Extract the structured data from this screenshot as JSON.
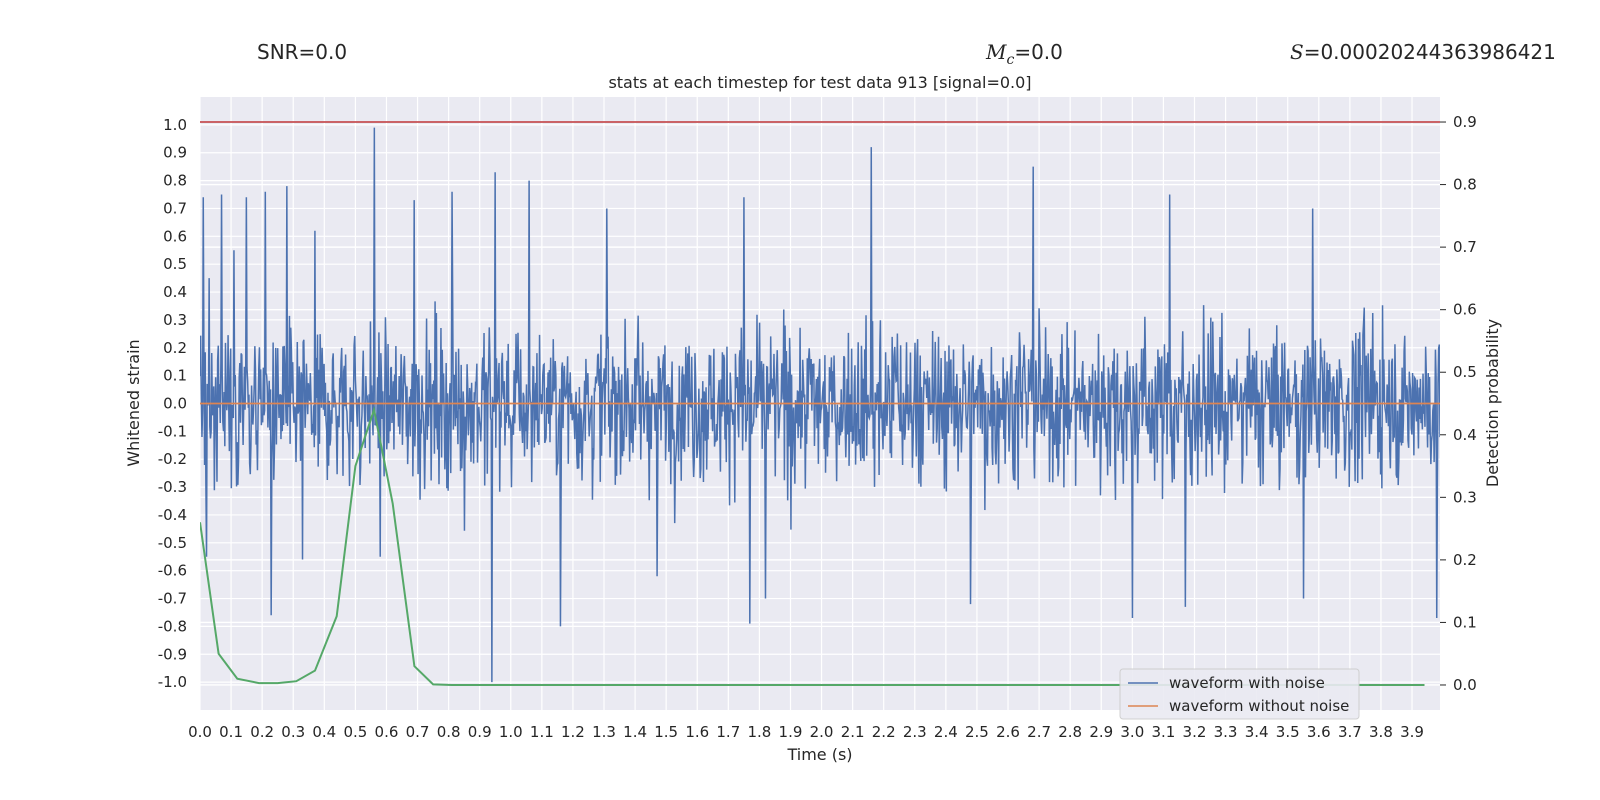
{
  "header": {
    "snr_label": "SNR=0.0",
    "mc_symbol": "M",
    "mc_sub": "c",
    "mc_value": "=0.0",
    "s_symbol": "S",
    "s_value": "=0.00020244363986421"
  },
  "chart_data": {
    "type": "line",
    "title": "stats at each timestep for test data 913 [signal=0.0]",
    "xlabel": "Time (s)",
    "ylabel": "Whitened strain",
    "ylabel_right": "Detection probability",
    "xlim": [
      0.0,
      3.99
    ],
    "ylim": [
      -1.1,
      1.1
    ],
    "ylim_right": [
      -0.04,
      0.94
    ],
    "x_ticks": [
      0.0,
      0.1,
      0.2,
      0.3,
      0.4,
      0.5,
      0.6,
      0.7,
      0.8,
      0.9,
      1.0,
      1.1,
      1.2,
      1.3,
      1.4,
      1.5,
      1.6,
      1.7,
      1.8,
      1.9,
      2.0,
      2.1,
      2.2,
      2.3,
      2.4,
      2.5,
      2.6,
      2.7,
      2.8,
      2.9,
      3.0,
      3.1,
      3.2,
      3.3,
      3.4,
      3.5,
      3.6,
      3.7,
      3.8,
      3.9
    ],
    "y_ticks": [
      1.0,
      0.9,
      0.8,
      0.7,
      0.6,
      0.5,
      0.4,
      0.3,
      0.2,
      0.1,
      0.0,
      -0.1,
      -0.2,
      -0.3,
      -0.4,
      -0.5,
      -0.6,
      -0.7,
      -0.8,
      -0.9,
      -1.0
    ],
    "y_ticks_right": [
      0.9,
      0.8,
      0.7,
      0.6,
      0.5,
      0.4,
      0.3,
      0.2,
      0.1,
      0.0
    ],
    "grid": true,
    "legend_position": "bottom-right",
    "threshold_right": 0.9,
    "series": [
      {
        "name": "waveform with noise",
        "color": "#4c72b0",
        "axis": "left",
        "style": "noise",
        "envelope_peaks": [
          [
            0.01,
            0.74
          ],
          [
            0.03,
            0.45
          ],
          [
            0.07,
            0.75
          ],
          [
            0.11,
            0.55
          ],
          [
            0.15,
            0.74
          ],
          [
            0.21,
            0.76
          ],
          [
            0.28,
            0.78
          ],
          [
            0.37,
            0.62
          ],
          [
            0.56,
            0.99
          ],
          [
            0.69,
            0.73
          ],
          [
            0.81,
            0.76
          ],
          [
            0.95,
            0.83
          ],
          [
            1.06,
            0.8
          ],
          [
            1.31,
            0.7
          ],
          [
            1.75,
            0.74
          ],
          [
            2.16,
            0.92
          ],
          [
            2.68,
            0.85
          ],
          [
            3.12,
            0.75
          ],
          [
            3.58,
            0.7
          ]
        ],
        "envelope_troughs": [
          [
            0.02,
            -0.55
          ],
          [
            0.23,
            -0.76
          ],
          [
            0.33,
            -0.56
          ],
          [
            0.58,
            -0.55
          ],
          [
            0.94,
            -1.0
          ],
          [
            1.16,
            -0.8
          ],
          [
            1.47,
            -0.62
          ],
          [
            1.77,
            -0.79
          ],
          [
            1.82,
            -0.7
          ],
          [
            2.48,
            -0.72
          ],
          [
            3.0,
            -0.77
          ],
          [
            3.17,
            -0.73
          ],
          [
            3.55,
            -0.7
          ],
          [
            3.98,
            -0.77
          ]
        ]
      },
      {
        "name": "waveform without noise",
        "color": "#dd8452",
        "axis": "left",
        "x": [
          0.0,
          3.99
        ],
        "y": [
          0.0,
          0.0
        ]
      },
      {
        "color": "#55a868",
        "axis": "right",
        "x": [
          0.0,
          0.06,
          0.12,
          0.19,
          0.25,
          0.31,
          0.37,
          0.44,
          0.5,
          0.56,
          0.62,
          0.69,
          0.75,
          0.81,
          0.88,
          1.0,
          1.5,
          2.0,
          2.5,
          3.0,
          3.5,
          3.94
        ],
        "y": [
          0.26,
          0.05,
          0.01,
          0.003,
          0.003,
          0.006,
          0.023,
          0.11,
          0.35,
          0.44,
          0.29,
          0.03,
          0.001,
          0.0,
          0.0,
          0.0,
          0.0,
          0.0,
          0.0,
          0.0,
          0.0,
          0.0
        ]
      }
    ]
  }
}
